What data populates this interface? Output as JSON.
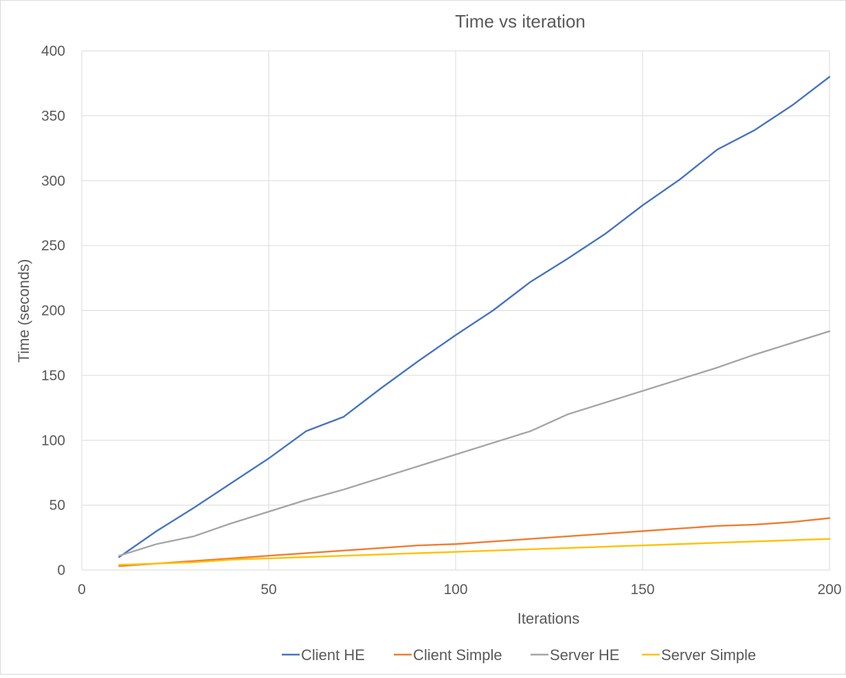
{
  "chart_data": {
    "type": "line",
    "title": "Time vs iteration",
    "xlabel": "Iterations",
    "ylabel": "Time (seconds)",
    "xlim": [
      0,
      200
    ],
    "ylim": [
      0,
      400
    ],
    "xticks": [
      0,
      50,
      100,
      150,
      200
    ],
    "yticks": [
      0,
      50,
      100,
      150,
      200,
      250,
      300,
      350,
      400
    ],
    "grid": true,
    "legend_position": "bottom",
    "x": [
      10,
      20,
      30,
      40,
      50,
      60,
      70,
      80,
      90,
      100,
      110,
      120,
      130,
      140,
      150,
      160,
      170,
      180,
      190,
      200
    ],
    "series": [
      {
        "name": "Client HE",
        "color": "#4472c4",
        "values": [
          10,
          30,
          48,
          67,
          86,
          107,
          118,
          140,
          161,
          181,
          200,
          222,
          240,
          259,
          281,
          301,
          324,
          339,
          358,
          380
        ]
      },
      {
        "name": "Client Simple",
        "color": "#ed7d31",
        "values": [
          3,
          5,
          7,
          9,
          11,
          13,
          15,
          17,
          19,
          20,
          22,
          24,
          26,
          28,
          30,
          32,
          34,
          35,
          37,
          40
        ]
      },
      {
        "name": "Server HE",
        "color": "#a5a5a5",
        "values": [
          11,
          20,
          26,
          36,
          45,
          54,
          62,
          71,
          80,
          89,
          98,
          107,
          120,
          129,
          138,
          147,
          156,
          166,
          175,
          184
        ]
      },
      {
        "name": "Server Simple",
        "color": "#ffc000",
        "values": [
          4,
          5,
          6,
          8,
          9,
          10,
          11,
          12,
          13,
          14,
          15,
          16,
          17,
          18,
          19,
          20,
          21,
          22,
          23,
          24
        ]
      }
    ]
  }
}
